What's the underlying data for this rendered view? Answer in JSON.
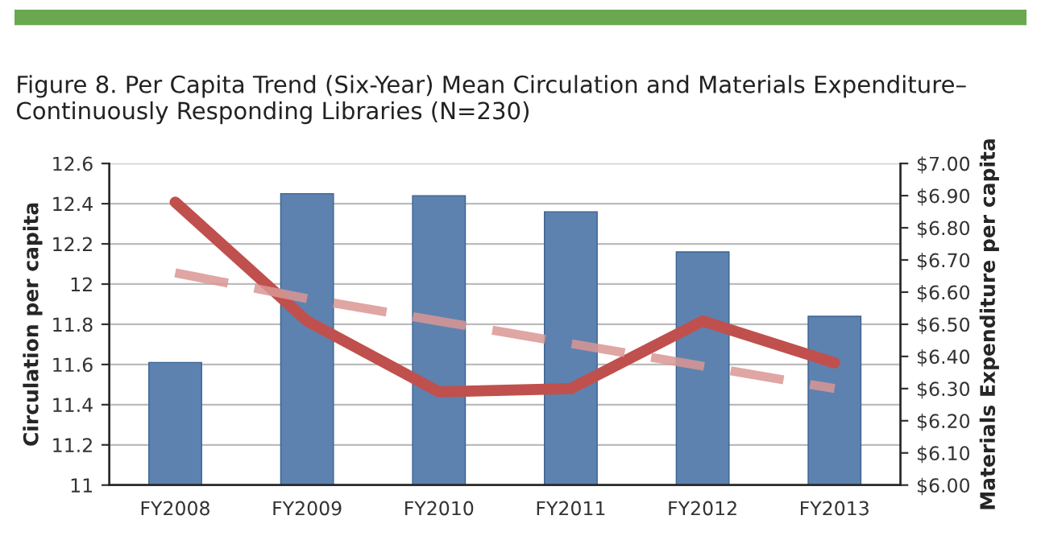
{
  "chart_data": {
    "type": "bar",
    "title": "Figure 8. Per Capita Trend (Six-Year) Mean Circulation and Materials Expenditure–\nContinuously Responding Libraries (N=230)",
    "categories": [
      "FY2008",
      "FY2009",
      "FY2010",
      "FY2011",
      "FY2012",
      "FY2013"
    ],
    "series": [
      {
        "color": "#4f81bd",
        "values": [
          11.61,
          12.45,
          12.44,
          12.36,
          12.16,
          11.84
        ]
      },
      {
        "type": "line",
        "axis": "y2",
        "color": "#c0504d",
        "values": [
          6.88,
          6.51,
          6.29,
          6.3,
          6.51,
          6.38
        ]
      },
      {
        "type": "line",
        "axis": "y2",
        "color": "#d99694",
        "line_style": "dashed",
        "values": [
          6.66,
          6.58,
          6.51,
          6.44,
          6.37,
          6.3
        ]
      }
    ],
    "ylabel": "Circulation per capita",
    "y2label": "Materials Expenditure per capita",
    "ylim": [
      11,
      12.6
    ],
    "yticks": [
      11,
      11.2,
      11.4,
      11.6,
      11.8,
      12,
      12.2,
      12.4,
      12.6
    ],
    "y2lim": [
      6.0,
      7.0
    ],
    "y2ticks": [
      {
        "value": 6.0,
        "label": "$6.00"
      },
      {
        "value": 6.1,
        "label": "$6.10"
      },
      {
        "value": 6.2,
        "label": "$6.20"
      },
      {
        "value": 6.3,
        "label": "$6.30"
      },
      {
        "value": 6.4,
        "label": "$6.40"
      },
      {
        "value": 6.5,
        "label": "$6.50"
      },
      {
        "value": 6.6,
        "label": "$6.60"
      },
      {
        "value": 6.7,
        "label": "$6.70"
      },
      {
        "value": 6.8,
        "label": "$6.80"
      },
      {
        "value": 6.9,
        "label": "$6.90"
      },
      {
        "value": 7.0,
        "label": "$7.00"
      }
    ],
    "grid": "y",
    "legend": false
  }
}
